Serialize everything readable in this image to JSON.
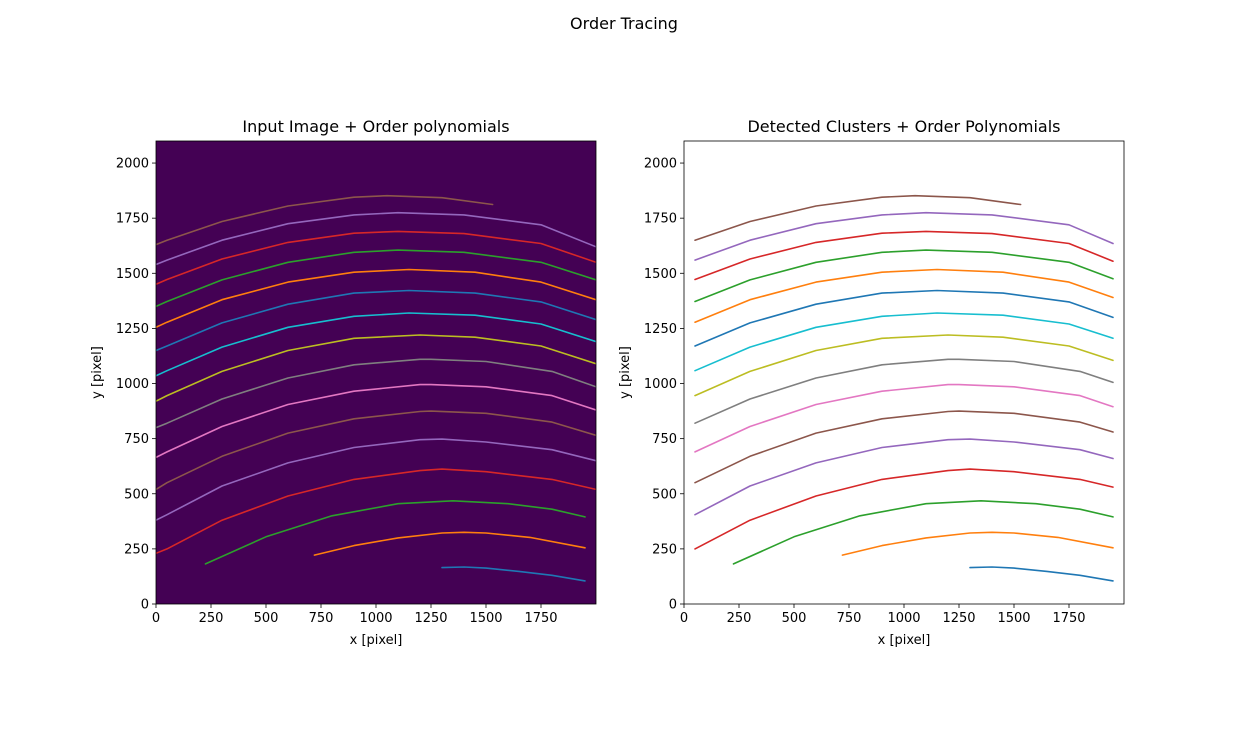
{
  "figure": {
    "suptitle": "Order Tracing"
  },
  "chart_data": [
    {
      "type": "line",
      "title": "Input Image + Order polynomials",
      "xlabel": "x [pixel]",
      "ylabel": "y [pixel]",
      "xlim": [
        0,
        2000
      ],
      "ylim": [
        0,
        2100
      ],
      "xticks": [
        "0",
        "250",
        "500",
        "750",
        "1000",
        "1250",
        "1500",
        "1750"
      ],
      "yticks": [
        "0",
        "250",
        "500",
        "750",
        "1000",
        "1250",
        "1500",
        "1750",
        "2000"
      ],
      "background": "#440154",
      "series": [
        {
          "color": "#1f77b4",
          "x": [
            1300,
            1400,
            1500,
            1650,
            1800,
            1950
          ],
          "y": [
            165,
            168,
            163,
            148,
            130,
            105
          ]
        },
        {
          "color": "#ff7f0e",
          "x": [
            720,
            900,
            1100,
            1300,
            1400,
            1500,
            1700,
            1950
          ],
          "y": [
            222,
            265,
            300,
            322,
            325,
            322,
            302,
            255
          ]
        },
        {
          "color": "#2ca02c",
          "x": [
            225,
            500,
            800,
            1100,
            1350,
            1600,
            1800,
            1950
          ],
          "y": [
            182,
            305,
            400,
            455,
            468,
            455,
            430,
            395
          ]
        },
        {
          "color": "#d62728",
          "x": [
            0,
            50,
            300,
            600,
            900,
            1200,
            1300,
            1500,
            1800,
            2000
          ],
          "y": [
            230,
            250,
            380,
            490,
            565,
            605,
            612,
            600,
            565,
            520
          ]
        },
        {
          "color": "#9467bd",
          "x": [
            0,
            50,
            300,
            600,
            900,
            1200,
            1300,
            1500,
            1800,
            2000
          ],
          "y": [
            380,
            405,
            535,
            640,
            710,
            745,
            748,
            735,
            700,
            650
          ]
        },
        {
          "color": "#8c564b",
          "x": [
            0,
            50,
            300,
            600,
            900,
            1200,
            1250,
            1500,
            1800,
            2000
          ],
          "y": [
            520,
            550,
            670,
            775,
            840,
            873,
            875,
            865,
            825,
            765
          ]
        },
        {
          "color": "#e377c2",
          "x": [
            0,
            50,
            300,
            600,
            900,
            1200,
            1250,
            1500,
            1800,
            2000
          ],
          "y": [
            665,
            690,
            805,
            905,
            965,
            995,
            995,
            985,
            945,
            880
          ]
        },
        {
          "color": "#7f7f7f",
          "x": [
            0,
            50,
            300,
            600,
            900,
            1200,
            1250,
            1500,
            1800,
            2000
          ],
          "y": [
            800,
            820,
            930,
            1025,
            1085,
            1110,
            1110,
            1100,
            1055,
            985
          ]
        },
        {
          "color": "#bcbd22",
          "x": [
            0,
            50,
            300,
            600,
            900,
            1200,
            1450,
            1750,
            2000
          ],
          "y": [
            920,
            945,
            1055,
            1150,
            1205,
            1220,
            1210,
            1170,
            1090
          ]
        },
        {
          "color": "#17becf",
          "x": [
            0,
            50,
            300,
            600,
            900,
            1150,
            1450,
            1750,
            2000
          ],
          "y": [
            1035,
            1058,
            1165,
            1255,
            1305,
            1320,
            1310,
            1270,
            1190
          ]
        },
        {
          "color": "#1f77b4",
          "x": [
            0,
            50,
            300,
            600,
            900,
            1150,
            1450,
            1750,
            2000
          ],
          "y": [
            1150,
            1170,
            1275,
            1360,
            1410,
            1422,
            1410,
            1370,
            1290
          ]
        },
        {
          "color": "#ff7f0e",
          "x": [
            0,
            50,
            300,
            600,
            900,
            1150,
            1450,
            1750,
            2000
          ],
          "y": [
            1255,
            1278,
            1380,
            1460,
            1505,
            1517,
            1505,
            1460,
            1380
          ]
        },
        {
          "color": "#2ca02c",
          "x": [
            0,
            50,
            300,
            600,
            900,
            1100,
            1400,
            1750,
            2000
          ],
          "y": [
            1350,
            1372,
            1470,
            1550,
            1595,
            1605,
            1595,
            1550,
            1470
          ]
        },
        {
          "color": "#d62728",
          "x": [
            0,
            50,
            300,
            600,
            900,
            1100,
            1400,
            1750,
            2000
          ],
          "y": [
            1450,
            1472,
            1565,
            1640,
            1682,
            1690,
            1680,
            1635,
            1550
          ]
        },
        {
          "color": "#9467bd",
          "x": [
            0,
            50,
            300,
            600,
            900,
            1100,
            1400,
            1750,
            2000
          ],
          "y": [
            1540,
            1560,
            1650,
            1725,
            1765,
            1775,
            1765,
            1720,
            1620
          ]
        },
        {
          "color": "#8c564b",
          "x": [
            0,
            50,
            300,
            600,
            900,
            1050,
            1300,
            1530
          ],
          "y": [
            1630,
            1650,
            1735,
            1805,
            1845,
            1852,
            1843,
            1812
          ]
        }
      ]
    },
    {
      "type": "line",
      "title": "Detected Clusters + Order Polynomials",
      "xlabel": "x [pixel]",
      "ylabel": "y [pixel]",
      "xlim": [
        0,
        2000
      ],
      "ylim": [
        0,
        2100
      ],
      "xticks": [
        "0",
        "250",
        "500",
        "750",
        "1000",
        "1250",
        "1500",
        "1750"
      ],
      "yticks": [
        "0",
        "250",
        "500",
        "750",
        "1000",
        "1250",
        "1500",
        "1750",
        "2000"
      ],
      "background": "#ffffff",
      "series": [
        {
          "color": "#1f77b4",
          "x": [
            1300,
            1400,
            1500,
            1650,
            1800,
            1950
          ],
          "y": [
            165,
            168,
            163,
            148,
            130,
            105
          ]
        },
        {
          "color": "#ff7f0e",
          "x": [
            720,
            900,
            1100,
            1300,
            1400,
            1500,
            1700,
            1950
          ],
          "y": [
            222,
            265,
            300,
            322,
            325,
            322,
            302,
            255
          ]
        },
        {
          "color": "#2ca02c",
          "x": [
            225,
            500,
            800,
            1100,
            1350,
            1600,
            1800,
            1950
          ],
          "y": [
            182,
            305,
            400,
            455,
            468,
            455,
            430,
            395
          ]
        },
        {
          "color": "#d62728",
          "x": [
            50,
            300,
            600,
            900,
            1200,
            1300,
            1500,
            1800,
            1950
          ],
          "y": [
            250,
            380,
            490,
            565,
            605,
            612,
            600,
            565,
            530
          ]
        },
        {
          "color": "#9467bd",
          "x": [
            50,
            300,
            600,
            900,
            1200,
            1300,
            1500,
            1800,
            1950
          ],
          "y": [
            405,
            535,
            640,
            710,
            745,
            748,
            735,
            700,
            660
          ]
        },
        {
          "color": "#8c564b",
          "x": [
            50,
            300,
            600,
            900,
            1200,
            1250,
            1500,
            1800,
            1950
          ],
          "y": [
            550,
            670,
            775,
            840,
            873,
            875,
            865,
            825,
            780
          ]
        },
        {
          "color": "#e377c2",
          "x": [
            50,
            300,
            600,
            900,
            1200,
            1250,
            1500,
            1800,
            1950
          ],
          "y": [
            690,
            805,
            905,
            965,
            995,
            995,
            985,
            945,
            895
          ]
        },
        {
          "color": "#7f7f7f",
          "x": [
            50,
            300,
            600,
            900,
            1200,
            1250,
            1500,
            1800,
            1950
          ],
          "y": [
            820,
            930,
            1025,
            1085,
            1110,
            1110,
            1100,
            1055,
            1005
          ]
        },
        {
          "color": "#bcbd22",
          "x": [
            50,
            300,
            600,
            900,
            1200,
            1450,
            1750,
            1950
          ],
          "y": [
            945,
            1055,
            1150,
            1205,
            1220,
            1210,
            1170,
            1105
          ]
        },
        {
          "color": "#17becf",
          "x": [
            50,
            300,
            600,
            900,
            1150,
            1450,
            1750,
            1950
          ],
          "y": [
            1058,
            1165,
            1255,
            1305,
            1320,
            1310,
            1270,
            1205
          ]
        },
        {
          "color": "#1f77b4",
          "x": [
            50,
            300,
            600,
            900,
            1150,
            1450,
            1750,
            1950
          ],
          "y": [
            1170,
            1275,
            1360,
            1410,
            1422,
            1410,
            1370,
            1300
          ]
        },
        {
          "color": "#ff7f0e",
          "x": [
            50,
            300,
            600,
            900,
            1150,
            1450,
            1750,
            1950
          ],
          "y": [
            1278,
            1380,
            1460,
            1505,
            1517,
            1505,
            1460,
            1390
          ]
        },
        {
          "color": "#2ca02c",
          "x": [
            50,
            300,
            600,
            900,
            1100,
            1400,
            1750,
            1950
          ],
          "y": [
            1372,
            1470,
            1550,
            1595,
            1605,
            1595,
            1550,
            1475
          ]
        },
        {
          "color": "#d62728",
          "x": [
            50,
            300,
            600,
            900,
            1100,
            1400,
            1750,
            1950
          ],
          "y": [
            1472,
            1565,
            1640,
            1682,
            1690,
            1680,
            1635,
            1555
          ]
        },
        {
          "color": "#9467bd",
          "x": [
            50,
            300,
            600,
            900,
            1100,
            1400,
            1750,
            1950
          ],
          "y": [
            1560,
            1650,
            1725,
            1765,
            1775,
            1765,
            1720,
            1635
          ]
        },
        {
          "color": "#8c564b",
          "x": [
            50,
            300,
            600,
            900,
            1050,
            1300,
            1530
          ],
          "y": [
            1650,
            1735,
            1805,
            1845,
            1852,
            1843,
            1812
          ]
        }
      ]
    }
  ]
}
